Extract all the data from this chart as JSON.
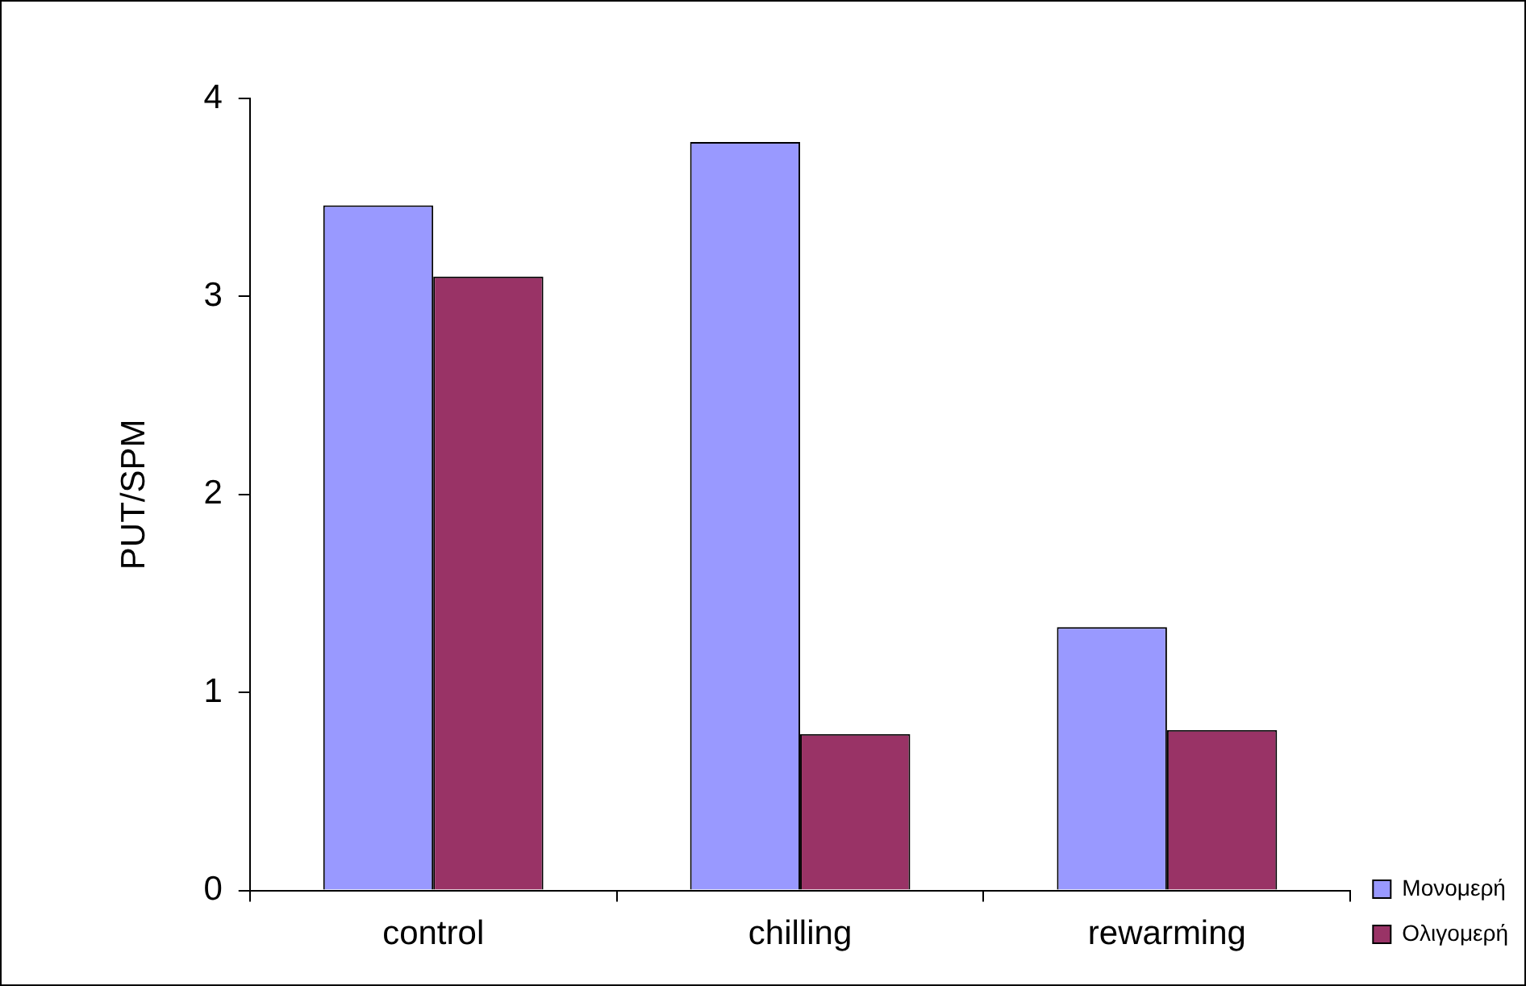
{
  "chart_data": {
    "type": "bar",
    "ylabel": "PUT/SPM",
    "categories": [
      "control",
      "chilling",
      "rewarming"
    ],
    "series": [
      {
        "name": "Μονομερή",
        "color": "#9999ff",
        "values": [
          3.46,
          3.78,
          1.33
        ]
      },
      {
        "name": "Ολιγομερή",
        "color": "#993366",
        "values": [
          3.1,
          0.79,
          0.81
        ]
      }
    ],
    "ylim": [
      0,
      4
    ],
    "yticks": [
      0,
      1,
      2,
      3,
      4
    ],
    "grid": false,
    "legend": "bottom right"
  }
}
